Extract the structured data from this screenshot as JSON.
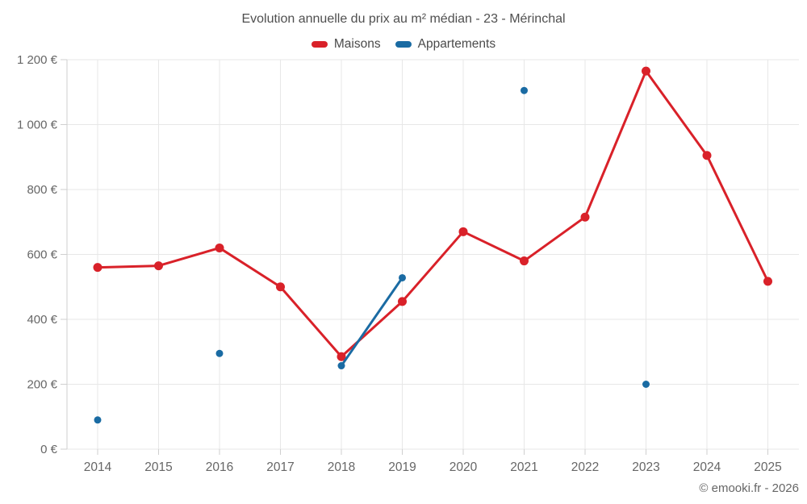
{
  "header": {
    "title": "Evolution annuelle du prix au m² médian - 23 - Mérinchal"
  },
  "legend": {
    "items": [
      {
        "label": "Maisons",
        "color": "#d92129"
      },
      {
        "label": "Appartements",
        "color": "#1a6ba3"
      }
    ]
  },
  "footer": {
    "credit": "© emooki.fr - 2026"
  },
  "colors": {
    "grid": "#e7e7e7",
    "axis": "#cfcfcf",
    "tick_text": "#666666",
    "title_text": "#4f4f4f"
  },
  "chart_data": {
    "type": "line",
    "title": "Evolution annuelle du prix au m² médian - 23 - Mérinchal",
    "x": [
      "2014",
      "2015",
      "2016",
      "2017",
      "2018",
      "2019",
      "2020",
      "2021",
      "2022",
      "2023",
      "2024",
      "2025"
    ],
    "series": [
      {
        "name": "Maisons",
        "color": "#d92129",
        "marker_radius": 5.5,
        "line_width": 3,
        "values": [
          560,
          565,
          620,
          500,
          285,
          455,
          670,
          580,
          715,
          1165,
          905,
          517
        ]
      },
      {
        "name": "Appartements",
        "color": "#1a6ba3",
        "marker_radius": 4.5,
        "line_width": 3,
        "values": [
          90,
          null,
          295,
          null,
          257,
          528,
          null,
          1105,
          null,
          200,
          null,
          null
        ]
      }
    ],
    "ylim": [
      0,
      1200
    ],
    "yticks": [
      0,
      200,
      400,
      600,
      800,
      1000,
      1200
    ],
    "ytick_labels": [
      "0 €",
      "200 €",
      "400 €",
      "600 €",
      "800 €",
      "1 000 €",
      "1 200 €"
    ],
    "unit": "€",
    "grid": true,
    "legend_position": "top"
  }
}
